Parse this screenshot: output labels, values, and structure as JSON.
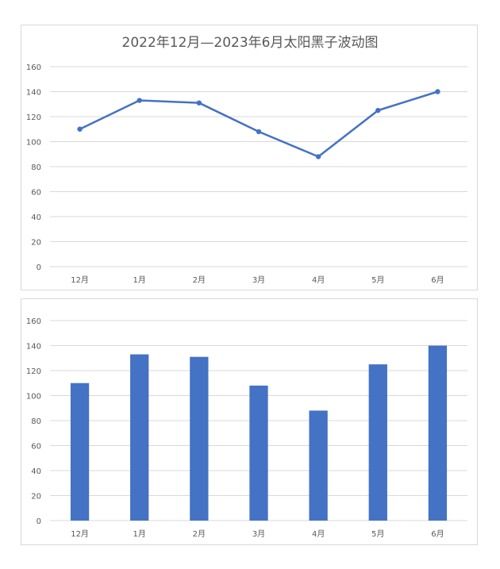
{
  "chart_data": [
    {
      "type": "line",
      "title": "2022年12月—2023年6月太阳黑子波动图",
      "categories": [
        "12月",
        "1月",
        "2月",
        "3月",
        "4月",
        "5月",
        "6月"
      ],
      "values": [
        110,
        133,
        131,
        108,
        88,
        125,
        140
      ],
      "yticks": [
        "0",
        "20",
        "40",
        "60",
        "80",
        "100",
        "120",
        "140",
        "160"
      ],
      "ylim": [
        0,
        160
      ],
      "grid": true,
      "color": "#4472c4"
    },
    {
      "type": "bar",
      "title": "",
      "categories": [
        "12月",
        "1月",
        "2月",
        "3月",
        "4月",
        "5月",
        "6月"
      ],
      "values": [
        110,
        133,
        131,
        108,
        88,
        125,
        140
      ],
      "yticks": [
        "0",
        "20",
        "40",
        "60",
        "80",
        "100",
        "120",
        "140",
        "160"
      ],
      "ylim": [
        0,
        160
      ],
      "grid": true,
      "color": "#4472c4"
    }
  ]
}
